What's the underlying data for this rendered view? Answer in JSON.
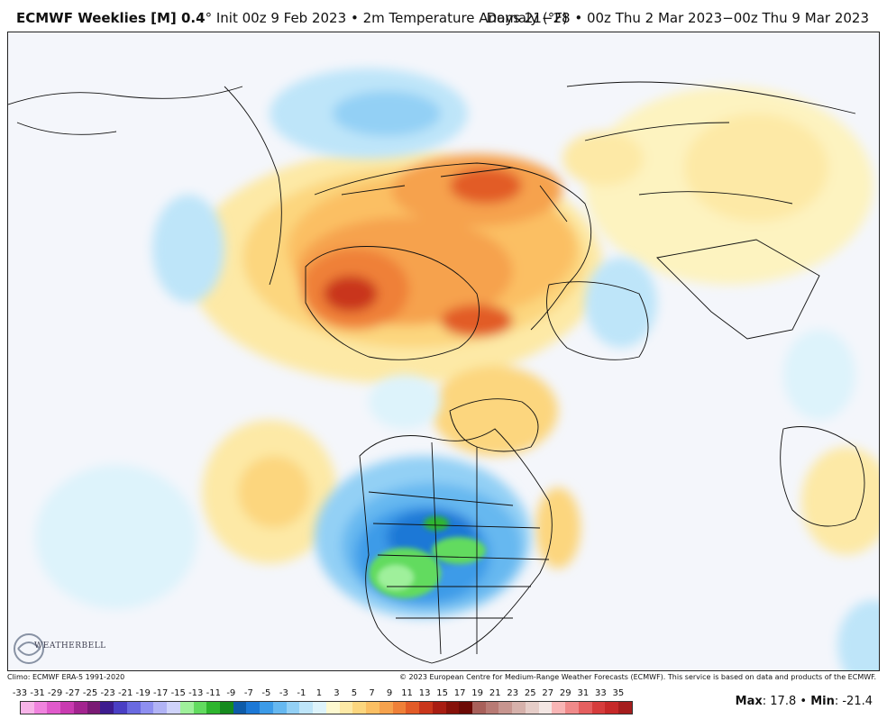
{
  "header": {
    "product": "ECMWF Weeklies [M] 0.4",
    "degree": "°",
    "init": "Init 00z 9 Feb 2023",
    "separator": "•",
    "variable": "2m Temperature Anomaly (°F)",
    "period": "Days 21−28 • 00z Thu 2 Mar 2023−00z Thu 9 Mar 2023"
  },
  "footer": {
    "climo": "Climo: ECMWF ERA-5 1991-2020",
    "copyright": "© 2023 European Centre for Medium-Range Weather Forecasts (ECMWF). This service is based on data and products of the ECMWF.",
    "max_label": "Max",
    "max_value": ": 17.8",
    "bullet": "•",
    "min_label": "Min",
    "min_value": ": -21.4"
  },
  "logo": {
    "text": "WEATHERBELL",
    "icon": "swirl-logo-icon"
  },
  "legend": {
    "labels": [
      "-33",
      "-31",
      "-29",
      "-27",
      "-25",
      "-23",
      "-21",
      "-19",
      "-17",
      "-15",
      "-13",
      "-11",
      "-9",
      "-7",
      "-5",
      "-3",
      "-1",
      "1",
      "3",
      "5",
      "7",
      "9",
      "11",
      "13",
      "15",
      "17",
      "19",
      "21",
      "23",
      "25",
      "27",
      "29",
      "31",
      "33",
      "35"
    ],
    "colors": [
      "#f7b3e8",
      "#f083de",
      "#e05acb",
      "#c93bb0",
      "#a3248f",
      "#7a1a74",
      "#3d1c8f",
      "#4a3fc4",
      "#6a6ae0",
      "#8e8ff0",
      "#b1b3f5",
      "#cfd3fa",
      "#9ff09b",
      "#62db5f",
      "#2eb52e",
      "#158a1e",
      "#0e5ba8",
      "#1c78d6",
      "#3c9be8",
      "#66b8f0",
      "#93d0f5",
      "#bee5f9",
      "#ddf3fb",
      "#fdf9d0",
      "#fde9a6",
      "#fcd67e",
      "#fbbf63",
      "#f6a24d",
      "#ef8038",
      "#e25b27",
      "#c9361b",
      "#a81d12",
      "#861109",
      "#6c0a05",
      "#a8605a",
      "#b87a74",
      "#c7958f",
      "#d6b1ab",
      "#e6cdc8",
      "#f3e6e3",
      "#f8b5b5",
      "#f08a8a",
      "#e55f5f",
      "#d63c3c",
      "#c62828",
      "#a51d1d"
    ]
  }
}
